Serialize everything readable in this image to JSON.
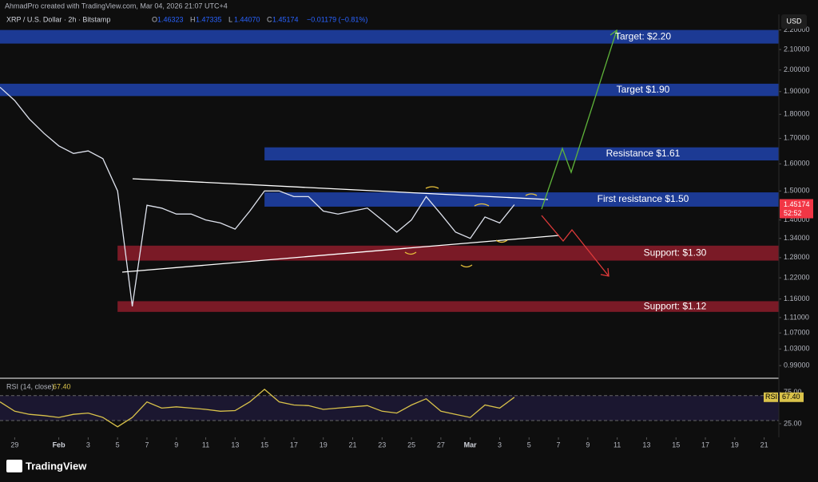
{
  "header": {
    "credit": "AhmadPro created with TradingView.com, Mar 04, 2026 21:07 UTC+4",
    "ohlc": [
      {
        "label": "O",
        "value": "1.46323"
      },
      {
        "label": "H",
        "value": "1.47335"
      },
      {
        "label": "L",
        "value": "1.44070"
      },
      {
        "label": "C",
        "value": "1.45174"
      }
    ],
    "change": "−0.01179 (−0.81%)",
    "currency": "USD"
  },
  "footer": {
    "brand": "TradingView"
  },
  "chart_data": [
    {
      "type": "line",
      "title": "XRP / U.S. Dollar · 2h · Bitstamp",
      "color": "#dfe3ee",
      "log_scale": true,
      "x": [
        "2026-01-28",
        "2026-01-29",
        "2026-01-30",
        "2026-01-31",
        "2026-02-01",
        "2026-02-02",
        "2026-02-03",
        "2026-02-04",
        "2026-02-05",
        "2026-02-06",
        "2026-02-07",
        "2026-02-08",
        "2026-02-09",
        "2026-02-10",
        "2026-02-11",
        "2026-02-12",
        "2026-02-13",
        "2026-02-14",
        "2026-02-15",
        "2026-02-16",
        "2026-02-17",
        "2026-02-18",
        "2026-02-19",
        "2026-02-20",
        "2026-02-21",
        "2026-02-22",
        "2026-02-23",
        "2026-02-24",
        "2026-02-25",
        "2026-02-26",
        "2026-02-27",
        "2026-02-28",
        "2026-03-01",
        "2026-03-02",
        "2026-03-03",
        "2026-03-04"
      ],
      "values": [
        1.92,
        1.86,
        1.78,
        1.72,
        1.67,
        1.64,
        1.65,
        1.62,
        1.5,
        1.14,
        1.45,
        1.44,
        1.42,
        1.42,
        1.4,
        1.39,
        1.37,
        1.43,
        1.5,
        1.5,
        1.48,
        1.48,
        1.43,
        1.42,
        1.43,
        1.44,
        1.4,
        1.36,
        1.4,
        1.48,
        1.42,
        1.36,
        1.34,
        1.41,
        1.39,
        1.45174
      ],
      "xlim": [
        "2026-01-28",
        "2026-03-22"
      ],
      "xticks": [
        {
          "value": "2026-01-29",
          "label": "29"
        },
        {
          "value": "2026-02-01",
          "label": "Feb"
        },
        {
          "value": "2026-02-03",
          "label": "3"
        },
        {
          "value": "2026-02-05",
          "label": "5"
        },
        {
          "value": "2026-02-07",
          "label": "7"
        },
        {
          "value": "2026-02-09",
          "label": "9"
        },
        {
          "value": "2026-02-11",
          "label": "11"
        },
        {
          "value": "2026-02-13",
          "label": "13"
        },
        {
          "value": "2026-02-15",
          "label": "15"
        },
        {
          "value": "2026-02-17",
          "label": "17"
        },
        {
          "value": "2026-02-19",
          "label": "19"
        },
        {
          "value": "2026-02-21",
          "label": "21"
        },
        {
          "value": "2026-02-23",
          "label": "23"
        },
        {
          "value": "2026-02-25",
          "label": "25"
        },
        {
          "value": "2026-02-27",
          "label": "27"
        },
        {
          "value": "2026-03-01",
          "label": "Mar"
        },
        {
          "value": "2026-03-03",
          "label": "3"
        },
        {
          "value": "2026-03-05",
          "label": "5"
        },
        {
          "value": "2026-03-07",
          "label": "7"
        },
        {
          "value": "2026-03-09",
          "label": "9"
        },
        {
          "value": "2026-03-11",
          "label": "11"
        },
        {
          "value": "2026-03-13",
          "label": "13"
        },
        {
          "value": "2026-03-15",
          "label": "15"
        },
        {
          "value": "2026-03-17",
          "label": "17"
        },
        {
          "value": "2026-03-19",
          "label": "19"
        },
        {
          "value": "2026-03-21",
          "label": "21"
        }
      ],
      "ylim": [
        0.968,
        2.266
      ],
      "yticks": [
        {
          "value": 2.2,
          "label": "2.20000"
        },
        {
          "value": 2.1,
          "label": "2.10000"
        },
        {
          "value": 2.0,
          "label": "2.00000"
        },
        {
          "value": 1.9,
          "label": "1.90000"
        },
        {
          "value": 1.8,
          "label": "1.80000"
        },
        {
          "value": 1.7,
          "label": "1.70000"
        },
        {
          "value": 1.6,
          "label": "1.60000"
        },
        {
          "value": 1.5,
          "label": "1.50000"
        },
        {
          "value": 1.4,
          "label": "1.40000"
        },
        {
          "value": 1.34,
          "label": "1.34000"
        },
        {
          "value": 1.28,
          "label": "1.28000"
        },
        {
          "value": 1.22,
          "label": "1.22000"
        },
        {
          "value": 1.16,
          "label": "1.16000"
        },
        {
          "value": 1.11,
          "label": "1.11000"
        },
        {
          "value": 1.07,
          "label": "1.07000"
        },
        {
          "value": 1.03,
          "label": "1.03000"
        },
        {
          "value": 0.99,
          "label": "0.99000"
        }
      ],
      "last_price": {
        "value": 1.45174,
        "label": "1.45174",
        "countdown": "52:52",
        "color": "#f23645"
      },
      "zones": [
        {
          "label": "Target: $2.20",
          "from": "2026-01-28",
          "range": [
            2.13,
            2.2
          ],
          "color": "#1c3a94"
        },
        {
          "label": "Target $1.90",
          "from": "2026-01-28",
          "range": [
            1.88,
            1.936
          ],
          "color": "#1c3a94"
        },
        {
          "label": "Resistance $1.61",
          "from": "2026-02-15",
          "range": [
            1.613,
            1.664
          ],
          "color": "#1c3a94"
        },
        {
          "label": "First resistance $1.50",
          "from": "2026-02-15",
          "range": [
            1.445,
            1.495
          ],
          "color": "#1c3a94"
        },
        {
          "label": "Support: $1.30",
          "from": "2026-02-05",
          "range": [
            1.271,
            1.317
          ],
          "color": "#7a1a26"
        },
        {
          "label": "Support: $1.12",
          "from": "2026-02-05",
          "range": [
            1.125,
            1.154
          ],
          "color": "#7a1a26"
        }
      ]
    },
    {
      "type": "line",
      "title": "RSI (14, close)",
      "value_label": "67.40",
      "tag": "RSI",
      "color": "#d9c24a",
      "x": [
        "2026-01-28",
        "2026-01-29",
        "2026-01-30",
        "2026-01-31",
        "2026-02-01",
        "2026-02-02",
        "2026-02-03",
        "2026-02-04",
        "2026-02-05",
        "2026-02-06",
        "2026-02-07",
        "2026-02-08",
        "2026-02-09",
        "2026-02-10",
        "2026-02-11",
        "2026-02-12",
        "2026-02-13",
        "2026-02-14",
        "2026-02-15",
        "2026-02-16",
        "2026-02-17",
        "2026-02-18",
        "2026-02-19",
        "2026-02-20",
        "2026-02-21",
        "2026-02-22",
        "2026-02-23",
        "2026-02-24",
        "2026-02-25",
        "2026-02-26",
        "2026-02-27",
        "2026-02-28",
        "2026-03-01",
        "2026-03-02",
        "2026-03-03",
        "2026-03-04"
      ],
      "values": [
        60,
        45,
        40,
        38,
        35,
        40,
        42,
        35,
        20,
        35,
        60,
        50,
        52,
        50,
        48,
        45,
        46,
        60,
        80,
        60,
        55,
        54,
        48,
        50,
        52,
        54,
        45,
        42,
        55,
        65,
        45,
        40,
        35,
        55,
        50,
        67.4
      ],
      "ylim": [
        7,
        94
      ],
      "yticks": [
        {
          "value": 75,
          "label": "75.00"
        },
        {
          "value": 25,
          "label": "25.00"
        }
      ],
      "bands": [
        30,
        70
      ]
    }
  ]
}
